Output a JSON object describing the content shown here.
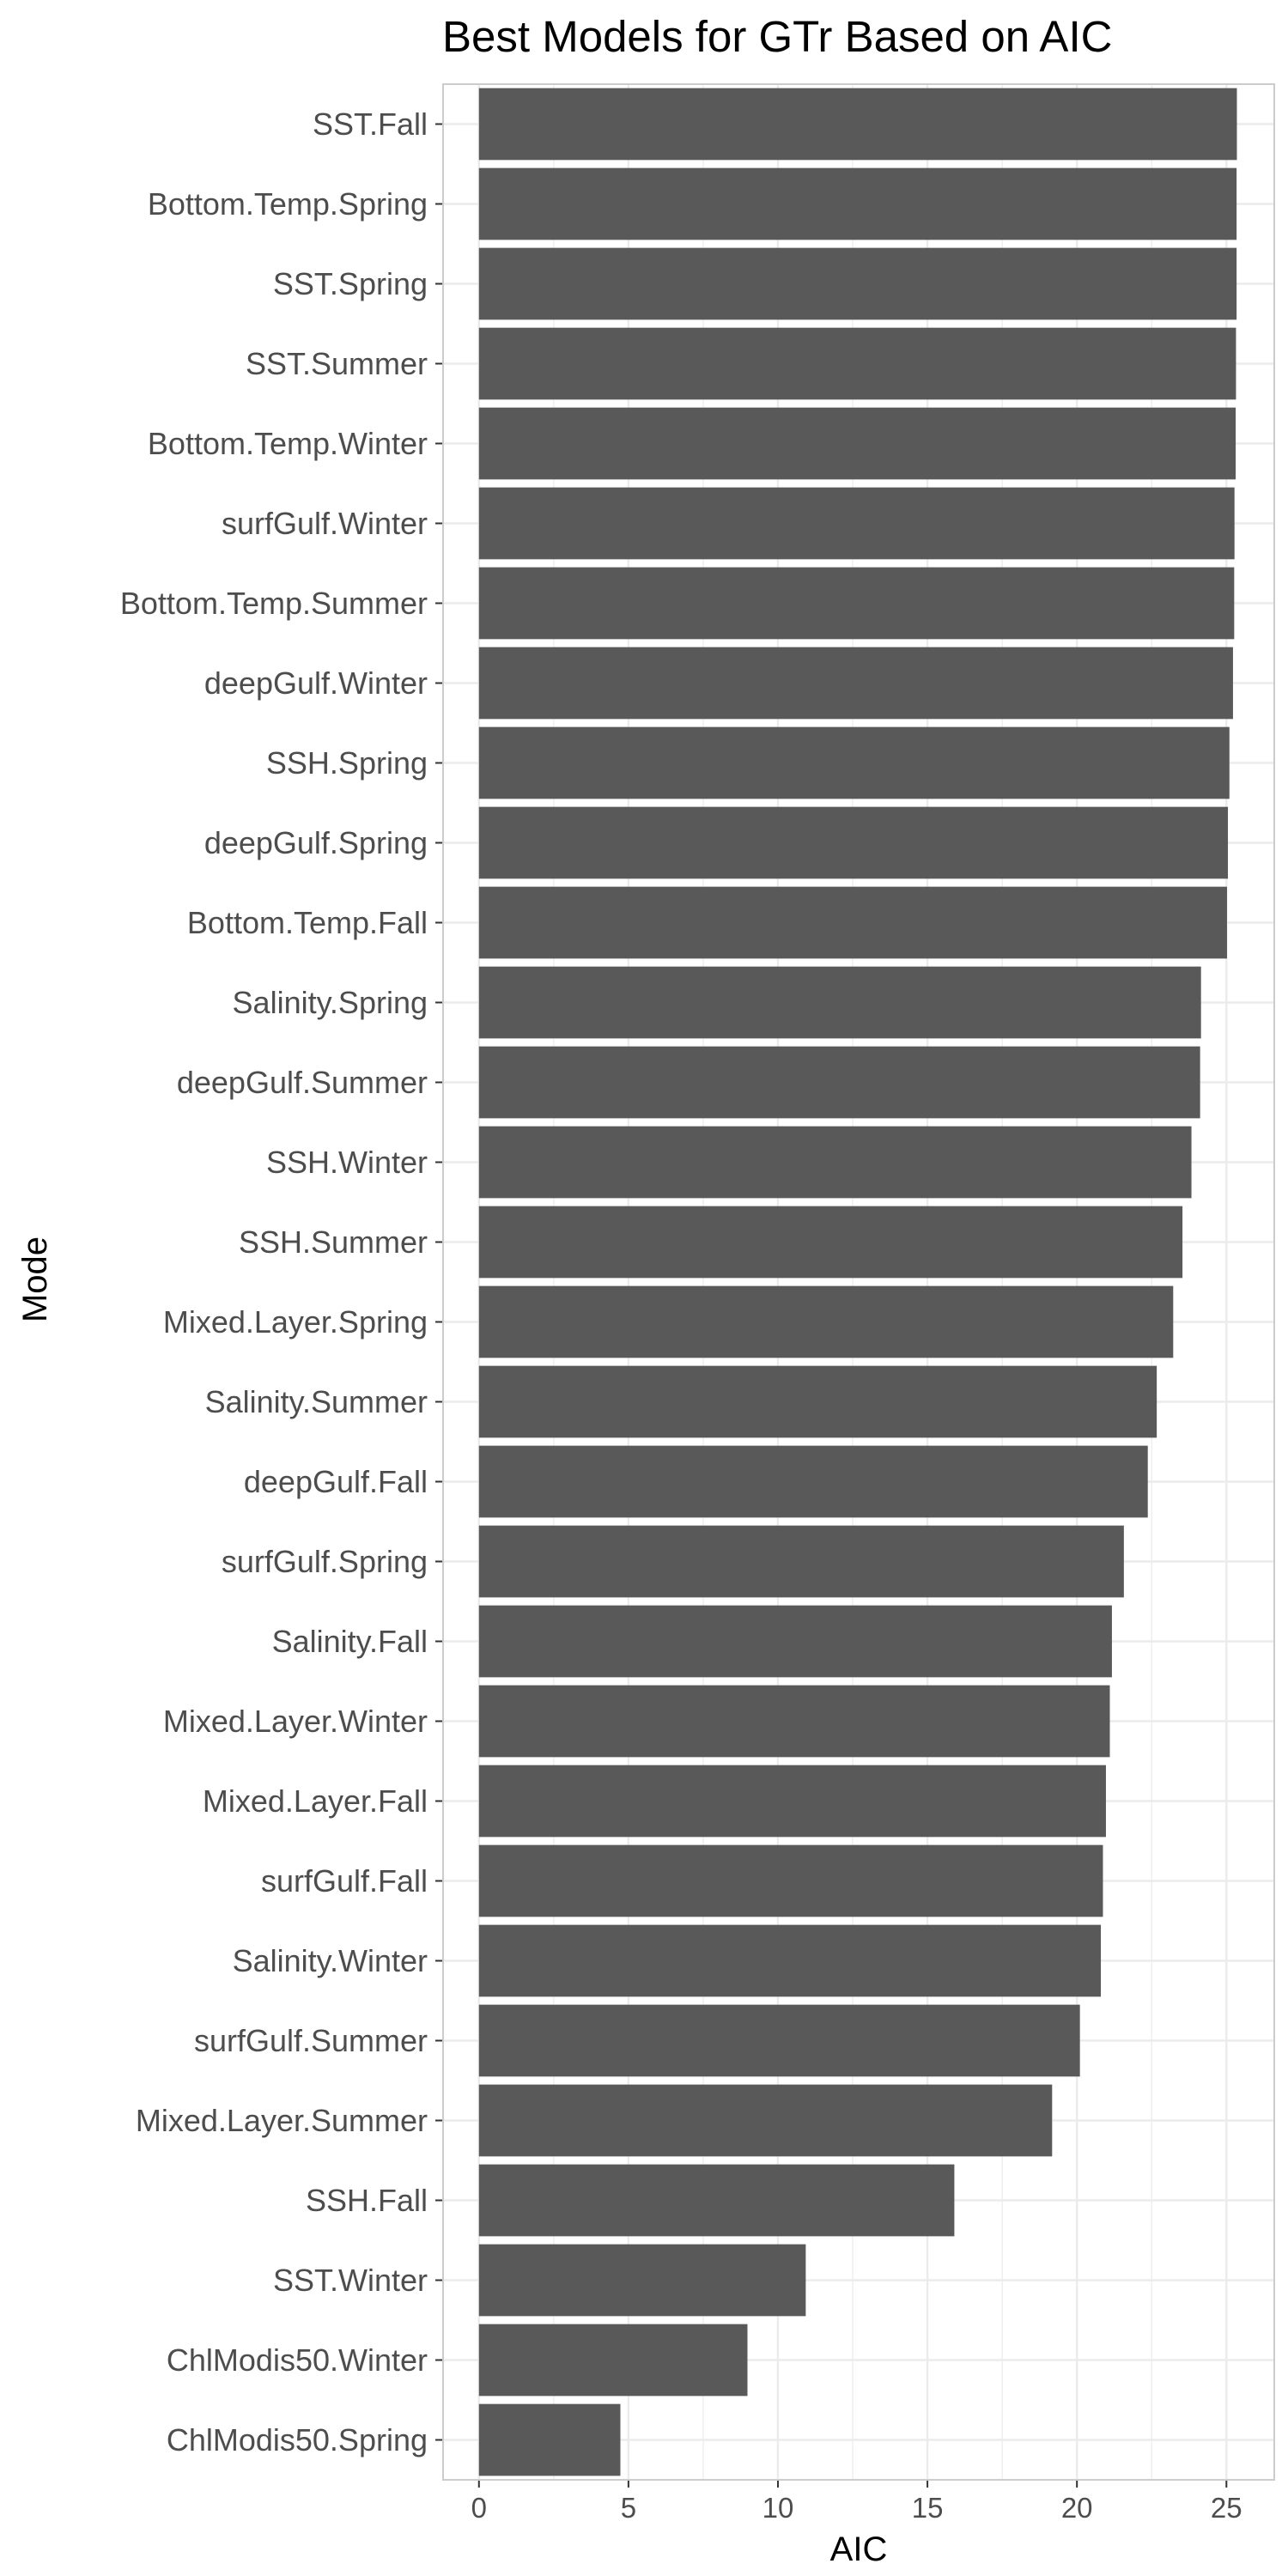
{
  "chart_data": {
    "type": "bar",
    "orientation": "horizontal",
    "title": "Best Models for GTr Based on AIC",
    "xlabel": "AIC",
    "ylabel": "Mode",
    "xlim": [
      -1.2,
      26.6
    ],
    "xticks": [
      0,
      5,
      10,
      15,
      20,
      25
    ],
    "grid": true,
    "categories": [
      "SST.Fall",
      "Bottom.Temp.Spring",
      "SST.Spring",
      "SST.Summer",
      "Bottom.Temp.Winter",
      "surfGulf.Winter",
      "Bottom.Temp.Summer",
      "deepGulf.Winter",
      "SSH.Spring",
      "deepGulf.Spring",
      "Bottom.Temp.Fall",
      "Salinity.Spring",
      "deepGulf.Summer",
      "SSH.Winter",
      "SSH.Summer",
      "Mixed.Layer.Spring",
      "Salinity.Summer",
      "deepGulf.Fall",
      "surfGulf.Spring",
      "Salinity.Fall",
      "Mixed.Layer.Winter",
      "Mixed.Layer.Fall",
      "surfGulf.Fall",
      "Salinity.Winter",
      "surfGulf.Summer",
      "Mixed.Layer.Summer",
      "SSH.Fall",
      "SST.Winter",
      "ChlModis50.Winter",
      "ChlModis50.Spring"
    ],
    "values": [
      25.35,
      25.34,
      25.34,
      25.32,
      25.31,
      25.27,
      25.26,
      25.22,
      25.1,
      25.05,
      25.02,
      24.15,
      24.12,
      23.83,
      23.53,
      23.22,
      22.67,
      22.37,
      21.57,
      21.17,
      21.1,
      20.97,
      20.87,
      20.8,
      20.1,
      19.17,
      15.9,
      10.93,
      8.98,
      4.73
    ],
    "bar_color": "#595959",
    "grid_color": "#ebebeb",
    "panel_border_color": "#cccccc",
    "text_color": "#4d4d4d"
  }
}
